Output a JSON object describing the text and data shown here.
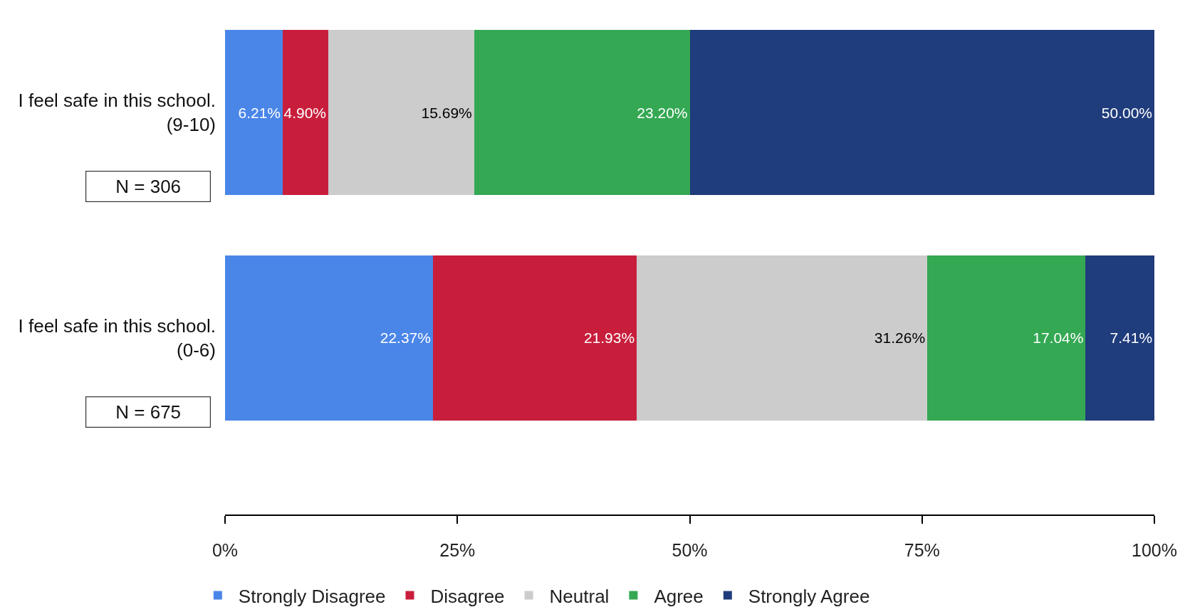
{
  "chart_data": {
    "type": "bar",
    "orientation": "horizontal",
    "stacked": true,
    "categories": [
      "I feel safe in this school.\n(9-10)",
      "I feel safe in this school.\n(0-6)"
    ],
    "series": [
      {
        "name": "Strongly Disagree",
        "color": "#4a86e8",
        "values": [
          6.21,
          22.37
        ],
        "value_labels": [
          "6.21%",
          "22.37%"
        ]
      },
      {
        "name": "Disagree",
        "color": "#c81e3c",
        "values": [
          4.9,
          21.93
        ],
        "value_labels": [
          "4.90%",
          "21.93%"
        ]
      },
      {
        "name": "Neutral",
        "color": "#cccccc",
        "values": [
          15.69,
          31.26
        ],
        "value_labels": [
          "15.69%",
          "31.26%"
        ]
      },
      {
        "name": "Agree",
        "color": "#34a853",
        "values": [
          23.2,
          17.04
        ],
        "value_labels": [
          "23.20%",
          "17.04%"
        ]
      },
      {
        "name": "Strongly Agree",
        "color": "#1f3c7c",
        "values": [
          50.0,
          7.41
        ],
        "value_labels": [
          "50.00%",
          "7.41%"
        ]
      }
    ],
    "xlim": [
      0,
      100
    ],
    "xticks": [
      {
        "value": 0,
        "label": "0%"
      },
      {
        "value": 25,
        "label": "25%"
      },
      {
        "value": 50,
        "label": "50%"
      },
      {
        "value": 75,
        "label": "75%"
      },
      {
        "value": 100,
        "label": "100%"
      }
    ],
    "annotations": [
      "N = 306",
      "N = 675"
    ],
    "grid": false,
    "legend": "bottom"
  }
}
